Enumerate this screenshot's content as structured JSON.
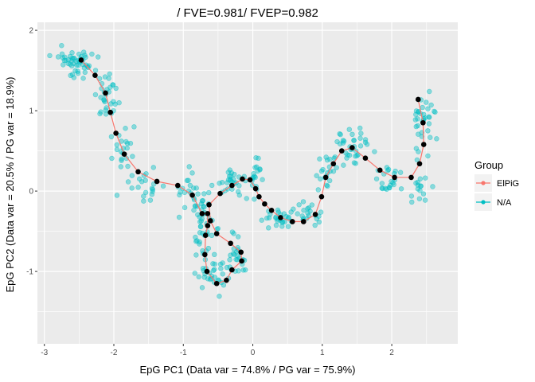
{
  "chart_data": {
    "type": "scatter",
    "title": "/ FVE=0.981/ FVEP=0.982",
    "xlabel": "EpG PC1 (Data var = 74.8% / PG var = 75.9%)",
    "ylabel": "EpG PC2 (Data var = 20.5% / PG var = 18.9%)",
    "xlim": [
      -3.1,
      2.95
    ],
    "ylim": [
      -1.9,
      2.1
    ],
    "x_ticks": [
      -3,
      -2,
      -1,
      0,
      1,
      2
    ],
    "x_tick_labels": [
      "-3",
      "-2",
      "-1",
      "0",
      "1",
      "2"
    ],
    "y_ticks": [
      -1,
      0,
      1,
      2
    ],
    "y_tick_labels": [
      "-1",
      "0",
      "1",
      "2"
    ],
    "grid": true,
    "legend_position": "right",
    "legend": {
      "title": "Group",
      "entries": [
        {
          "label": "ElPiG",
          "color": "#F8766D"
        },
        {
          "label": "N/A",
          "color": "#00BFC4"
        }
      ]
    },
    "colors": {
      "panel": "#EBEBEB",
      "grid": "#FFFFFF",
      "data": "#00BFC4",
      "tree": "#F8766D",
      "nodes": "#000000"
    },
    "node_points": [
      {
        "x": -2.47,
        "y": 1.63
      },
      {
        "x": -2.27,
        "y": 1.44
      },
      {
        "x": -2.12,
        "y": 1.22
      },
      {
        "x": -2.05,
        "y": 0.98
      },
      {
        "x": -1.97,
        "y": 0.72
      },
      {
        "x": -1.85,
        "y": 0.46
      },
      {
        "x": -1.65,
        "y": 0.24
      },
      {
        "x": -1.38,
        "y": 0.12
      },
      {
        "x": -1.08,
        "y": 0.07
      },
      {
        "x": -0.87,
        "y": -0.05
      },
      {
        "x": -0.73,
        "y": -0.28
      },
      {
        "x": -0.65,
        "y": -0.28
      },
      {
        "x": -0.65,
        "y": -0.43
      },
      {
        "x": -0.68,
        "y": -0.55
      },
      {
        "x": -0.69,
        "y": -0.79
      },
      {
        "x": -0.66,
        "y": -1.0
      },
      {
        "x": -0.52,
        "y": -1.15
      },
      {
        "x": -0.38,
        "y": -1.11
      },
      {
        "x": -0.3,
        "y": -0.98
      },
      {
        "x": -0.16,
        "y": -0.87
      },
      {
        "x": -0.17,
        "y": -0.76
      },
      {
        "x": -0.32,
        "y": -0.65
      },
      {
        "x": -0.52,
        "y": -0.53
      },
      {
        "x": -0.61,
        "y": -0.37
      },
      {
        "x": -0.63,
        "y": -0.17
      },
      {
        "x": -0.47,
        "y": -0.03
      },
      {
        "x": -0.3,
        "y": 0.07
      },
      {
        "x": -0.15,
        "y": 0.15
      },
      {
        "x": -0.04,
        "y": 0.14
      },
      {
        "x": 0.04,
        "y": 0.03
      },
      {
        "x": 0.09,
        "y": -0.07
      },
      {
        "x": 0.17,
        "y": -0.16
      },
      {
        "x": 0.27,
        "y": -0.24
      },
      {
        "x": 0.4,
        "y": -0.33
      },
      {
        "x": 0.57,
        "y": -0.38
      },
      {
        "x": 0.73,
        "y": -0.38
      },
      {
        "x": 0.9,
        "y": -0.29
      },
      {
        "x": 0.99,
        "y": -0.07
      },
      {
        "x": 1.05,
        "y": 0.17
      },
      {
        "x": 1.16,
        "y": 0.34
      },
      {
        "x": 1.28,
        "y": 0.5
      },
      {
        "x": 1.43,
        "y": 0.54
      },
      {
        "x": 1.62,
        "y": 0.41
      },
      {
        "x": 1.83,
        "y": 0.26
      },
      {
        "x": 2.04,
        "y": 0.17
      },
      {
        "x": 2.28,
        "y": 0.17
      },
      {
        "x": 2.4,
        "y": 0.34
      },
      {
        "x": 2.46,
        "y": 0.58
      },
      {
        "x": 2.45,
        "y": 0.85
      },
      {
        "x": 2.38,
        "y": 1.14
      }
    ],
    "tree_edges": [
      [
        0,
        1
      ],
      [
        1,
        2
      ],
      [
        2,
        3
      ],
      [
        3,
        4
      ],
      [
        4,
        5
      ],
      [
        5,
        6
      ],
      [
        6,
        7
      ],
      [
        7,
        8
      ],
      [
        8,
        9
      ],
      [
        9,
        10
      ],
      [
        10,
        11
      ],
      [
        11,
        12
      ],
      [
        12,
        13
      ],
      [
        13,
        14
      ],
      [
        14,
        15
      ],
      [
        15,
        16
      ],
      [
        16,
        17
      ],
      [
        17,
        18
      ],
      [
        18,
        19
      ],
      [
        19,
        20
      ],
      [
        20,
        21
      ],
      [
        21,
        22
      ],
      [
        22,
        23
      ],
      [
        23,
        24
      ],
      [
        24,
        25
      ],
      [
        25,
        26
      ],
      [
        26,
        27
      ],
      [
        27,
        28
      ],
      [
        28,
        29
      ],
      [
        29,
        30
      ],
      [
        30,
        31
      ],
      [
        31,
        32
      ],
      [
        32,
        33
      ],
      [
        33,
        34
      ],
      [
        34,
        35
      ],
      [
        35,
        36
      ],
      [
        36,
        37
      ],
      [
        37,
        38
      ],
      [
        38,
        39
      ],
      [
        39,
        40
      ],
      [
        40,
        41
      ],
      [
        41,
        42
      ],
      [
        42,
        43
      ],
      [
        43,
        44
      ],
      [
        44,
        45
      ],
      [
        45,
        46
      ],
      [
        46,
        47
      ],
      [
        47,
        48
      ],
      [
        48,
        49
      ]
    ],
    "data_clusters": [
      {
        "cx": -2.55,
        "cy": 1.6,
        "sx": 0.2,
        "sy": 0.13,
        "n": 50
      },
      {
        "cx": -2.1,
        "cy": 1.15,
        "sx": 0.12,
        "sy": 0.2,
        "n": 30
      },
      {
        "cx": -1.85,
        "cy": 0.55,
        "sx": 0.12,
        "sy": 0.2,
        "n": 22
      },
      {
        "cx": -1.55,
        "cy": 0.05,
        "sx": 0.22,
        "sy": 0.14,
        "n": 20
      },
      {
        "cx": -0.95,
        "cy": 0.0,
        "sx": 0.14,
        "sy": 0.2,
        "n": 20
      },
      {
        "cx": -0.68,
        "cy": -0.45,
        "sx": 0.12,
        "sy": 0.3,
        "n": 45
      },
      {
        "cx": -0.55,
        "cy": -1.05,
        "sx": 0.16,
        "sy": 0.15,
        "n": 30
      },
      {
        "cx": -0.25,
        "cy": -0.8,
        "sx": 0.12,
        "sy": 0.18,
        "n": 25
      },
      {
        "cx": -0.25,
        "cy": 0.1,
        "sx": 0.18,
        "sy": 0.14,
        "n": 30
      },
      {
        "cx": 0.05,
        "cy": 0.2,
        "sx": 0.07,
        "sy": 0.14,
        "n": 15
      },
      {
        "cx": 0.35,
        "cy": -0.35,
        "sx": 0.22,
        "sy": 0.1,
        "n": 30
      },
      {
        "cx": 0.8,
        "cy": -0.3,
        "sx": 0.14,
        "sy": 0.12,
        "n": 18
      },
      {
        "cx": 1.05,
        "cy": 0.2,
        "sx": 0.12,
        "sy": 0.2,
        "n": 20
      },
      {
        "cx": 1.45,
        "cy": 0.55,
        "sx": 0.17,
        "sy": 0.17,
        "n": 35
      },
      {
        "cx": 1.95,
        "cy": 0.15,
        "sx": 0.17,
        "sy": 0.12,
        "n": 22
      },
      {
        "cx": 2.45,
        "cy": 0.85,
        "sx": 0.12,
        "sy": 0.28,
        "n": 35
      },
      {
        "cx": 2.4,
        "cy": 0.0,
        "sx": 0.12,
        "sy": 0.18,
        "n": 15
      }
    ]
  }
}
